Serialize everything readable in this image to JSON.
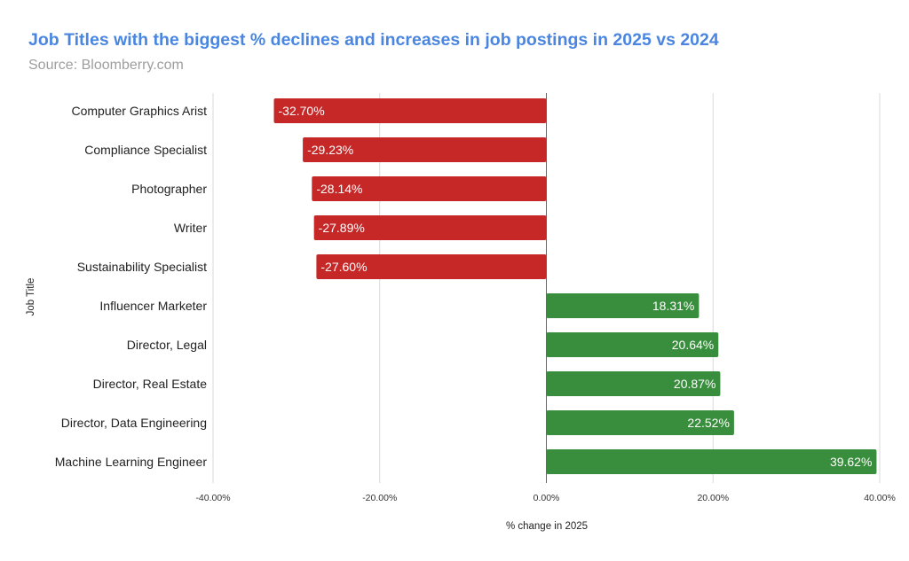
{
  "chart_data": {
    "type": "bar",
    "orientation": "horizontal",
    "title": "Job Titles with the biggest % declines and increases in job postings in 2025 vs 2024",
    "subtitle": "Source: Bloomberry.com",
    "xlabel": "% change in 2025",
    "ylabel": "Job Title",
    "xlim": [
      -40,
      40
    ],
    "xticks": [
      -40,
      -20,
      0,
      20,
      40
    ],
    "xtick_labels": [
      "-40.00%",
      "-20.00%",
      "0.00%",
      "20.00%",
      "40.00%"
    ],
    "grid": true,
    "categories": [
      "Computer Graphics Arist",
      "Compliance Specialist",
      "Photographer",
      "Writer",
      "Sustainability Specialist",
      "Influencer Marketer",
      "Director, Legal",
      "Director, Real Estate",
      "Director, Data Engineering",
      "Machine Learning Engineer"
    ],
    "values": [
      -32.7,
      -29.23,
      -28.14,
      -27.89,
      -27.6,
      18.31,
      20.64,
      20.87,
      22.52,
      39.62
    ],
    "data_labels": [
      "-32.70%",
      "-29.23%",
      "-28.14%",
      "-27.89%",
      "-27.60%",
      "18.31%",
      "20.64%",
      "20.87%",
      "22.52%",
      "39.62%"
    ],
    "colors": {
      "negative": "#c62828",
      "positive": "#388e3c",
      "title": "#4a86e0",
      "subtitle": "#9e9e9e"
    }
  }
}
